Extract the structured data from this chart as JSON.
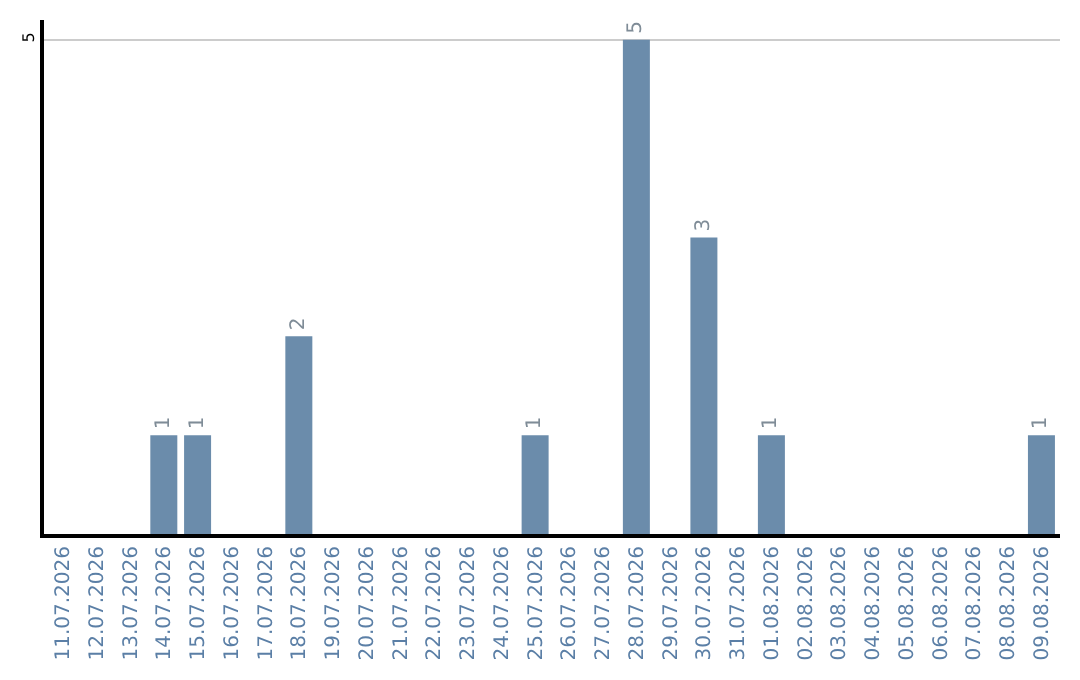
{
  "chart_data": {
    "type": "bar",
    "categories": [
      "11.07.2026",
      "12.07.2026",
      "13.07.2026",
      "14.07.2026",
      "15.07.2026",
      "16.07.2026",
      "17.07.2026",
      "18.07.2026",
      "19.07.2026",
      "20.07.2026",
      "21.07.2026",
      "22.07.2026",
      "23.07.2026",
      "24.07.2026",
      "25.07.2026",
      "26.07.2026",
      "27.07.2026",
      "28.07.2026",
      "29.07.2026",
      "30.07.2026",
      "31.07.2026",
      "01.08.2026",
      "02.08.2026",
      "03.08.2026",
      "04.08.2026",
      "05.08.2026",
      "06.08.2026",
      "07.08.2026",
      "08.08.2026",
      "09.08.2026"
    ],
    "values": [
      0,
      0,
      0,
      1,
      1,
      0,
      0,
      2,
      0,
      0,
      0,
      0,
      0,
      0,
      1,
      0,
      0,
      5,
      0,
      3,
      0,
      1,
      0,
      0,
      0,
      0,
      0,
      0,
      0,
      1
    ],
    "value_labels": [
      null,
      null,
      null,
      "1",
      "1",
      null,
      null,
      "2",
      null,
      null,
      null,
      null,
      null,
      null,
      "1",
      null,
      null,
      "5",
      null,
      "3",
      null,
      "1",
      null,
      null,
      null,
      null,
      null,
      null,
      null,
      "1"
    ],
    "color": "#6b8cab",
    "ylim": [
      0,
      5.2
    ],
    "yticks": [
      5
    ],
    "grid": "y",
    "legend": false
  }
}
